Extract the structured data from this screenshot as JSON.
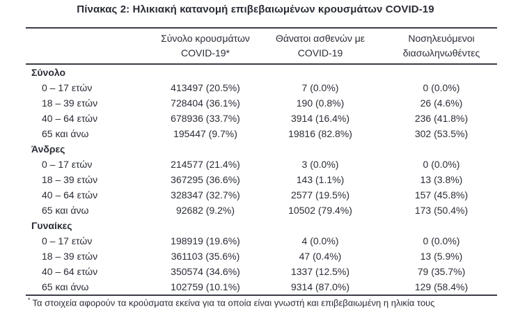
{
  "title": "Πίνακας 2: Ηλικιακή κατανομή επιβεβαιωμένων κρουσμάτων COVID-19",
  "table": {
    "col_headers": [
      {
        "line1": "Σύνολο κρουσμάτων",
        "line2": "COVID-19*"
      },
      {
        "line1": "Θάνατοι ασθενών με",
        "line2": "COVID-19"
      },
      {
        "line1": "Νοσηλευόμενοι",
        "line2": "διασωληνωθέντες"
      }
    ],
    "sections": [
      {
        "label": "Σύνολο",
        "rows": [
          {
            "age": "0 – 17 ετών",
            "cases": "413497 (20.5%)",
            "deaths": "7 (0.0%)",
            "intubated": "0 (0.0%)"
          },
          {
            "age": "18 – 39 ετών",
            "cases": "728404 (36.1%)",
            "deaths": "190 (0.8%)",
            "intubated": "26 (4.6%)"
          },
          {
            "age": "40 – 64 ετών",
            "cases": "678936 (33.7%)",
            "deaths": "3914 (16.4%)",
            "intubated": "236 (41.8%)"
          },
          {
            "age": "65 και άνω",
            "cases": "195447 (9.7%)",
            "deaths": "19816 (82.8%)",
            "intubated": "302 (53.5%)"
          }
        ]
      },
      {
        "label": "Άνδρες",
        "rows": [
          {
            "age": "0 – 17 ετών",
            "cases": "214577 (21.4%)",
            "deaths": "3 (0.0%)",
            "intubated": "0 (0.0%)"
          },
          {
            "age": "18 – 39 ετών",
            "cases": "367295 (36.6%)",
            "deaths": "143 (1.1%)",
            "intubated": "13 (3.8%)"
          },
          {
            "age": "40 – 64 ετών",
            "cases": "328347 (32.7%)",
            "deaths": "2577 (19.5%)",
            "intubated": "157 (45.8%)"
          },
          {
            "age": "65 και άνω",
            "cases": "92682 (9.2%)",
            "deaths": "10502 (79.4%)",
            "intubated": "173 (50.4%)"
          }
        ]
      },
      {
        "label": "Γυναίκες",
        "rows": [
          {
            "age": "0 – 17 ετών",
            "cases": "198919 (19.6%)",
            "deaths": "4 (0.0%)",
            "intubated": "0 (0.0%)"
          },
          {
            "age": "18 – 39 ετών",
            "cases": "361103 (35.6%)",
            "deaths": "47 (0.4%)",
            "intubated": "13 (5.9%)"
          },
          {
            "age": "40 – 64 ετών",
            "cases": "350574 (34.6%)",
            "deaths": "1337 (12.5%)",
            "intubated": "79 (35.7%)"
          },
          {
            "age": "65 και άνω",
            "cases": "102759 (10.1%)",
            "deaths": "9314 (87.0%)",
            "intubated": "129 (58.4%)"
          }
        ]
      }
    ]
  },
  "footnote": {
    "marker": "*",
    "text": "Τα στοιχεία αφορούν τα κρούσματα εκείνα για τα οποία είναι γνωστή και επιβεβαιωμένη η ηλικία τους"
  }
}
